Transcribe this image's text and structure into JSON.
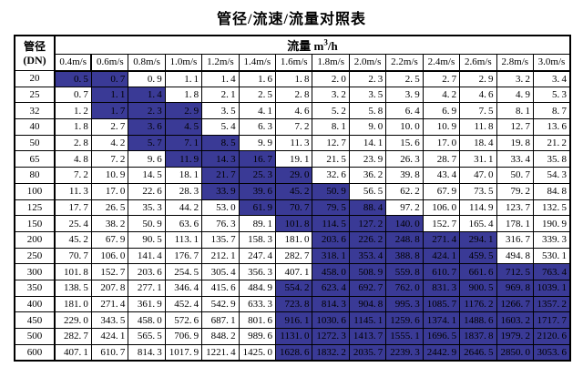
{
  "title": "管径/流速/流量对照表",
  "header": {
    "dn_line1": "管径",
    "dn_line2": "(DN)",
    "flow_label": "流量",
    "unit_base": "m",
    "unit_sup": "3",
    "unit_rest": "/h",
    "velocities": [
      "0.4m/s",
      "0.6m/s",
      "0.8m/s",
      "1.0m/s",
      "1.2m/s",
      "1.4m/s",
      "1.6m/s",
      "1.8m/s",
      "2.0m/s",
      "2.2m/s",
      "2.4m/s",
      "2.6m/s",
      "2.8m/s",
      "3.0m/s"
    ]
  },
  "highlight_color": "#3a3a96",
  "rows": [
    {
      "dn": "20",
      "values": [
        "0.5",
        "0.7",
        "0.9",
        "1.1",
        "1.4",
        "1.6",
        "1.8",
        "2.0",
        "2.3",
        "2.5",
        "2.7",
        "2.9",
        "3.2",
        "3.4"
      ],
      "highlight": [
        0,
        1
      ]
    },
    {
      "dn": "25",
      "values": [
        "0.7",
        "1.1",
        "1.4",
        "1.8",
        "2.1",
        "2.5",
        "2.8",
        "3.2",
        "3.5",
        "3.9",
        "4.2",
        "4.6",
        "4.9",
        "5.3"
      ],
      "highlight": [
        1,
        2
      ]
    },
    {
      "dn": "32",
      "values": [
        "1.2",
        "1.7",
        "2.3",
        "2.9",
        "3.5",
        "4.1",
        "4.6",
        "5.2",
        "5.8",
        "6.4",
        "6.9",
        "7.5",
        "8.1",
        "8.7"
      ],
      "highlight": [
        1,
        2,
        3
      ]
    },
    {
      "dn": "40",
      "values": [
        "1.8",
        "2.7",
        "3.6",
        "4.5",
        "5.4",
        "6.3",
        "7.2",
        "8.1",
        "9.0",
        "10.0",
        "10.9",
        "11.8",
        "12.7",
        "13.6"
      ],
      "highlight": [
        2,
        3
      ]
    },
    {
      "dn": "50",
      "values": [
        "2.8",
        "4.2",
        "5.7",
        "7.1",
        "8.5",
        "9.9",
        "11.3",
        "12.7",
        "14.1",
        "15.6",
        "17.0",
        "18.4",
        "19.8",
        "21.2"
      ],
      "highlight": [
        2,
        3,
        4
      ]
    },
    {
      "dn": "65",
      "values": [
        "4.8",
        "7.2",
        "9.6",
        "11.9",
        "14.3",
        "16.7",
        "19.1",
        "21.5",
        "23.9",
        "26.3",
        "28.7",
        "31.1",
        "33.4",
        "35.8"
      ],
      "highlight": [
        3,
        4,
        5
      ]
    },
    {
      "dn": "80",
      "values": [
        "7.2",
        "10.9",
        "14.5",
        "18.1",
        "21.7",
        "25.3",
        "29.0",
        "32.6",
        "36.2",
        "39.8",
        "43.4",
        "47.0",
        "50.7",
        "54.3"
      ],
      "highlight": [
        4,
        5,
        6
      ]
    },
    {
      "dn": "100",
      "values": [
        "11.3",
        "17.0",
        "22.6",
        "28.3",
        "33.9",
        "39.6",
        "45.2",
        "50.9",
        "56.5",
        "62.2",
        "67.9",
        "73.5",
        "79.2",
        "84.8"
      ],
      "highlight": [
        4,
        5,
        6,
        7
      ]
    },
    {
      "dn": "125",
      "values": [
        "17.7",
        "26.5",
        "35.3",
        "44.2",
        "53.0",
        "61.9",
        "70.7",
        "79.5",
        "88.4",
        "97.2",
        "106.0",
        "114.9",
        "123.7",
        "132.5"
      ],
      "highlight": [
        5,
        6,
        7,
        8
      ]
    },
    {
      "dn": "150",
      "values": [
        "25.4",
        "38.2",
        "50.9",
        "63.6",
        "76.3",
        "89.1",
        "101.8",
        "114.5",
        "127.2",
        "140.0",
        "152.7",
        "165.4",
        "178.1",
        "190.9"
      ],
      "highlight": [
        6,
        7,
        8,
        9
      ]
    },
    {
      "dn": "200",
      "values": [
        "45.2",
        "67.9",
        "90.5",
        "113.1",
        "135.7",
        "158.3",
        "181.0",
        "203.6",
        "226.2",
        "248.8",
        "271.4",
        "294.1",
        "316.7",
        "339.3"
      ],
      "highlight": [
        7,
        8,
        9,
        10,
        11
      ]
    },
    {
      "dn": "250",
      "values": [
        "70.7",
        "106.0",
        "141.4",
        "176.7",
        "212.1",
        "247.4",
        "282.7",
        "318.1",
        "353.4",
        "388.8",
        "424.1",
        "459.5",
        "494.8",
        "530.1"
      ],
      "highlight": [
        7,
        8,
        9,
        10,
        11
      ]
    },
    {
      "dn": "300",
      "values": [
        "101.8",
        "152.7",
        "203.6",
        "254.5",
        "305.4",
        "356.3",
        "407.1",
        "458.0",
        "508.9",
        "559.8",
        "610.7",
        "661.6",
        "712.5",
        "763.4"
      ],
      "highlight": [
        7,
        8,
        9,
        10,
        11,
        12,
        13
      ]
    },
    {
      "dn": "350",
      "values": [
        "138.5",
        "207.8",
        "277.1",
        "346.4",
        "415.6",
        "484.9",
        "554.2",
        "623.4",
        "692.7",
        "762.0",
        "831.3",
        "900.5",
        "969.8",
        "1039.1"
      ],
      "highlight": [
        6,
        7,
        8,
        9,
        10,
        11,
        12,
        13
      ]
    },
    {
      "dn": "400",
      "values": [
        "181.0",
        "271.4",
        "361.9",
        "452.4",
        "542.9",
        "633.3",
        "723.8",
        "814.3",
        "904.8",
        "995.3",
        "1085.7",
        "1176.2",
        "1266.7",
        "1357.2"
      ],
      "highlight": [
        6,
        7,
        8,
        9,
        10,
        11,
        12,
        13
      ]
    },
    {
      "dn": "450",
      "values": [
        "229.0",
        "343.5",
        "458.0",
        "572.6",
        "687.1",
        "801.6",
        "916.1",
        "1030.6",
        "1145.1",
        "1259.6",
        "1374.1",
        "1488.6",
        "1603.2",
        "1717.7"
      ],
      "highlight": [
        6,
        7,
        8,
        9,
        10,
        11,
        12,
        13
      ]
    },
    {
      "dn": "500",
      "values": [
        "282.7",
        "424.1",
        "565.5",
        "706.9",
        "848.2",
        "989.6",
        "1131.0",
        "1272.3",
        "1413.7",
        "1555.1",
        "1696.5",
        "1837.8",
        "1979.2",
        "2120.6"
      ],
      "highlight": [
        6,
        7,
        8,
        9,
        10,
        11,
        12,
        13
      ]
    },
    {
      "dn": "600",
      "values": [
        "407.1",
        "610.7",
        "814.3",
        "1017.9",
        "1221.4",
        "1425.0",
        "1628.6",
        "1832.2",
        "2035.7",
        "2239.3",
        "2442.9",
        "2646.5",
        "2850.0",
        "3053.6"
      ],
      "highlight": [
        6,
        7,
        8,
        9,
        10,
        11,
        12,
        13
      ]
    }
  ]
}
